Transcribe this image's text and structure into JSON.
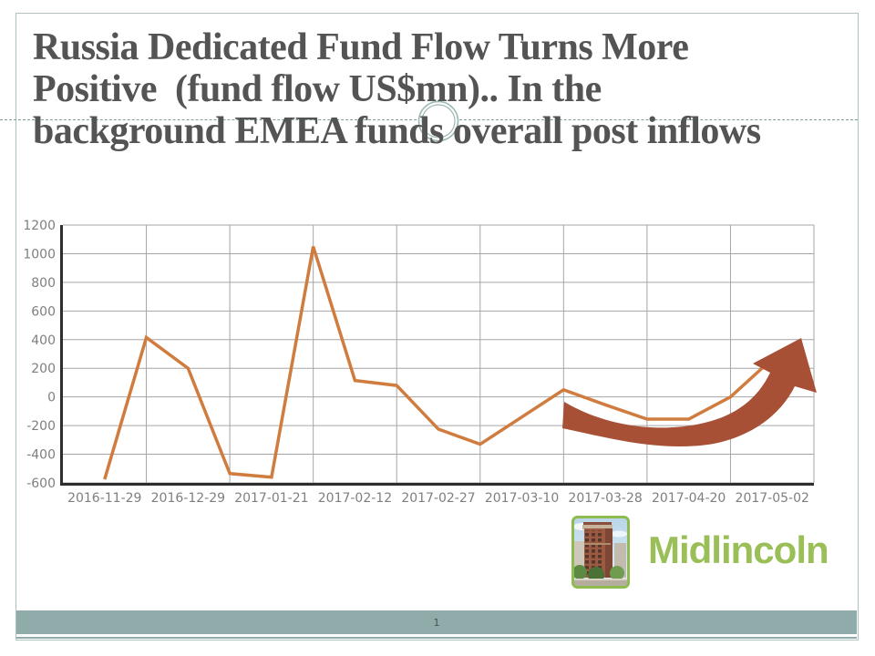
{
  "slide": {
    "title_lines": [
      "Russia Dedicated Fund Flow Turns More",
      "Positive  (fund flow US$mn).. In the",
      "background EMEA funds overall post inflows"
    ],
    "page_number": "1"
  },
  "logo": {
    "text": "Midlincoln",
    "icon": "brick-building-photo"
  },
  "colors": {
    "title_text": "#545454",
    "line": "#d07c3e",
    "arrow": "#a85036",
    "grid": "#a6a6a6",
    "axis": "#2e2e2e",
    "tick_label": "#7f7f7f",
    "footer_bar": "#8fabaa",
    "frame_border": "#adc3c0",
    "ornament": "#9cb8b5",
    "logo_green": "#9abf58"
  },
  "chart_data": {
    "type": "line",
    "title": "",
    "xlabel": "",
    "ylabel": "",
    "ylim": [
      -600,
      1200
    ],
    "yticks": [
      1200,
      1000,
      800,
      600,
      400,
      200,
      0,
      -200,
      -400,
      -600
    ],
    "categories": [
      "2016-11-29",
      "2016-12-29",
      "2017-01-21",
      "2017-02-12",
      "2017-02-27",
      "2017-03-10",
      "2017-03-28",
      "2017-04-20",
      "2017-05-02"
    ],
    "series": [
      {
        "name": "Russia dedicated fund flow (US$mn)",
        "points_per_category": 2,
        "values": [
          -575,
          415,
          200,
          -535,
          -560,
          1050,
          115,
          80,
          -225,
          -330,
          -140,
          50,
          -55,
          -155,
          -155,
          0,
          265
        ]
      }
    ],
    "grid": true,
    "legend": "none",
    "annotation": "upward-curved-arrow"
  }
}
